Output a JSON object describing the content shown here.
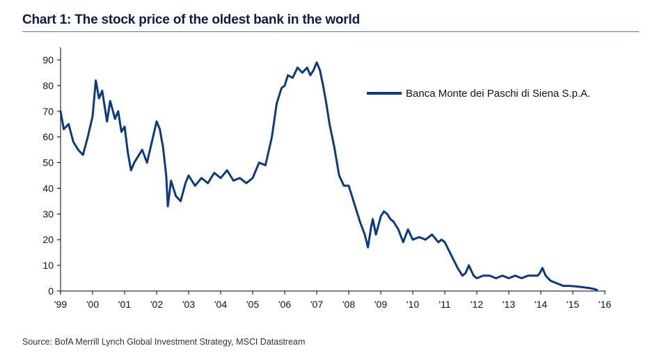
{
  "title": "Chart 1: The stock price of the oldest bank in the world",
  "source": "Source: BofA Merrill Lynch Global Investment Strategy, MSCI Datastream",
  "colors": {
    "series": "#0b3a82",
    "title": "#0a1d4a",
    "rule": "#5b7fb0",
    "axis": "#000000"
  },
  "chart_data": {
    "type": "line",
    "xlabel": "",
    "ylabel": "",
    "ylim": [
      0,
      90
    ],
    "xlim": [
      1999,
      2016
    ],
    "yticks": [
      0,
      10,
      20,
      30,
      40,
      50,
      60,
      70,
      80,
      90
    ],
    "xticks": [
      {
        "value": 1999,
        "label": "'99"
      },
      {
        "value": 2000,
        "label": "'00"
      },
      {
        "value": 2001,
        "label": "'01"
      },
      {
        "value": 2002,
        "label": "'02"
      },
      {
        "value": 2003,
        "label": "'03"
      },
      {
        "value": 2004,
        "label": "'04"
      },
      {
        "value": 2005,
        "label": "'05"
      },
      {
        "value": 2006,
        "label": "'06"
      },
      {
        "value": 2007,
        "label": "'07"
      },
      {
        "value": 2008,
        "label": "'08"
      },
      {
        "value": 2009,
        "label": "'09"
      },
      {
        "value": 2010,
        "label": "'10"
      },
      {
        "value": 2011,
        "label": "'11"
      },
      {
        "value": 2012,
        "label": "'12"
      },
      {
        "value": 2013,
        "label": "'13"
      },
      {
        "value": 2014,
        "label": "'14"
      },
      {
        "value": 2015,
        "label": "'15"
      },
      {
        "value": 2016,
        "label": "'16"
      }
    ],
    "grid": false,
    "legend_position": "top-right",
    "series": [
      {
        "name": "Banca Monte dei Paschi di Siena S.p.A.",
        "x": [
          1999.0,
          1999.1,
          1999.25,
          1999.4,
          1999.55,
          1999.7,
          1999.85,
          2000.0,
          2000.1,
          2000.2,
          2000.3,
          2000.45,
          2000.55,
          2000.7,
          2000.8,
          2000.9,
          2001.0,
          2001.1,
          2001.2,
          2001.3,
          2001.4,
          2001.55,
          2001.7,
          2001.85,
          2002.0,
          2002.1,
          2002.2,
          2002.3,
          2002.35,
          2002.45,
          2002.6,
          2002.75,
          2002.9,
          2003.0,
          2003.2,
          2003.4,
          2003.6,
          2003.8,
          2004.0,
          2004.2,
          2004.4,
          2004.6,
          2004.8,
          2005.0,
          2005.2,
          2005.4,
          2005.6,
          2005.75,
          2005.9,
          2006.0,
          2006.1,
          2006.25,
          2006.4,
          2006.55,
          2006.7,
          2006.8,
          2006.9,
          2007.0,
          2007.1,
          2007.2,
          2007.3,
          2007.4,
          2007.55,
          2007.7,
          2007.85,
          2008.0,
          2008.2,
          2008.35,
          2008.5,
          2008.6,
          2008.7,
          2008.75,
          2008.85,
          2009.0,
          2009.1,
          2009.2,
          2009.3,
          2009.4,
          2009.55,
          2009.7,
          2009.85,
          2010.0,
          2010.2,
          2010.4,
          2010.6,
          2010.8,
          2010.9,
          2011.0,
          2011.2,
          2011.4,
          2011.55,
          2011.65,
          2011.75,
          2011.9,
          2012.0,
          2012.2,
          2012.4,
          2012.6,
          2012.8,
          2013.0,
          2013.2,
          2013.4,
          2013.6,
          2013.8,
          2013.9,
          2013.97,
          2014.05,
          2014.15,
          2014.3,
          2014.5,
          2014.7,
          2014.9,
          2015.1,
          2015.3,
          2015.5,
          2015.65,
          2015.75
        ],
        "y": [
          70,
          63,
          65,
          58,
          55,
          53,
          60,
          68,
          82,
          75,
          78,
          66,
          74,
          67,
          70,
          62,
          64,
          54,
          47,
          50,
          52,
          55,
          50,
          58,
          66,
          63,
          56,
          45,
          33,
          43,
          37,
          35,
          42,
          45,
          41,
          44,
          42,
          46,
          44,
          47,
          43,
          44,
          42,
          44,
          50,
          49,
          60,
          73,
          79,
          80,
          84,
          83,
          87,
          85,
          87,
          84,
          86,
          89,
          86,
          80,
          73,
          65,
          56,
          45,
          41,
          41,
          33,
          27,
          22,
          17,
          25,
          28,
          22,
          29,
          31,
          30,
          28,
          27,
          24,
          19,
          24,
          20,
          21,
          20,
          22,
          19,
          20,
          19,
          14,
          9,
          6,
          7,
          10,
          6,
          5,
          6,
          6,
          5,
          6,
          5,
          6,
          5,
          6,
          6,
          6,
          7,
          9,
          6,
          4,
          3,
          2,
          2,
          1.8,
          1.5,
          1.2,
          0.8,
          0.5
        ]
      }
    ]
  }
}
